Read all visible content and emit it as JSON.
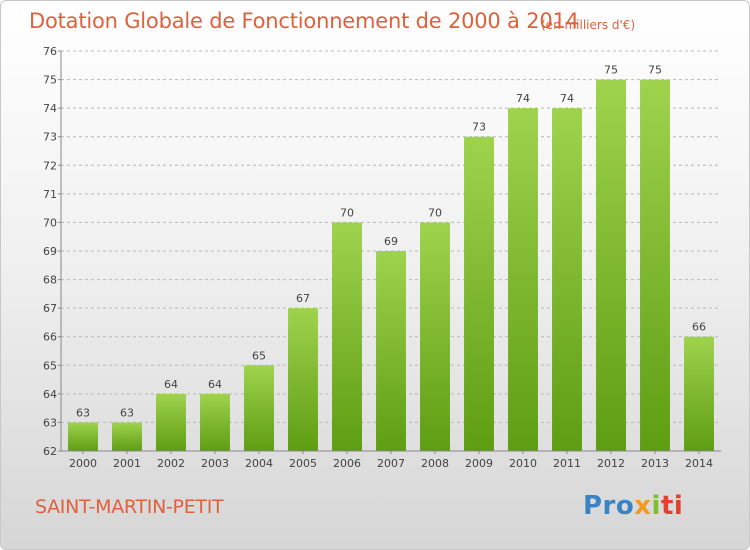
{
  "header": {
    "title": "Dotation Globale de Fonctionnement de 2000 à 2014",
    "subtitle": "(en milliers d'€)"
  },
  "footer": {
    "commune": "SAINT-MARTIN-PETIT",
    "logo": {
      "p1": "Pro",
      "p2": "x",
      "p3": "i",
      "p4": "ti"
    }
  },
  "colors": {
    "accent": "#e0603c",
    "bar_top": "#9fd34e",
    "bar_bottom": "#5e9d12"
  },
  "chart_data": {
    "type": "bar",
    "title": "Dotation Globale de Fonctionnement de 2000 à 2014",
    "subtitle": "(en milliers d'€)",
    "categories": [
      "2000",
      "2001",
      "2002",
      "2003",
      "2004",
      "2005",
      "2006",
      "2007",
      "2008",
      "2009",
      "2010",
      "2011",
      "2012",
      "2013",
      "2014"
    ],
    "values": [
      63,
      63,
      64,
      64,
      65,
      67,
      70,
      69,
      70,
      73,
      74,
      74,
      75,
      75,
      66
    ],
    "ylim": [
      62,
      76
    ],
    "yticks": [
      62,
      63,
      64,
      65,
      66,
      67,
      68,
      69,
      70,
      71,
      72,
      73,
      74,
      75,
      76
    ],
    "grid": true
  }
}
